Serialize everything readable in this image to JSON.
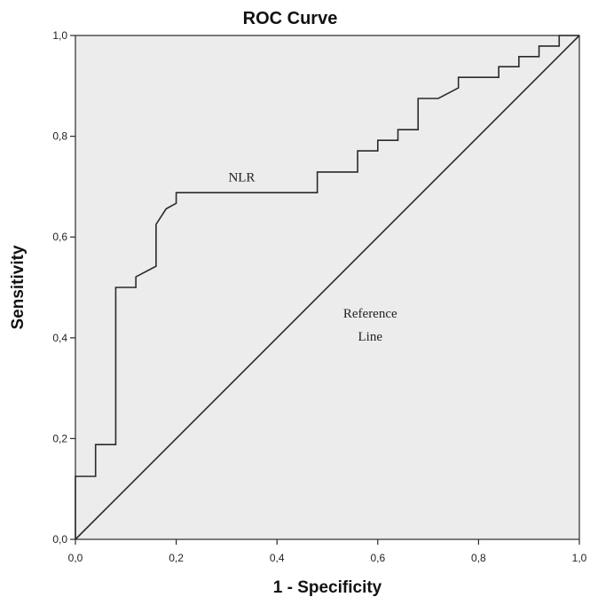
{
  "chart_data": {
    "type": "line",
    "title": "ROC Curve",
    "xlabel": "1 - Specificity",
    "ylabel": "Sensitivity",
    "xlim": [
      0,
      1
    ],
    "ylim": [
      0,
      1
    ],
    "xticks": [
      "0,0",
      "0,2",
      "0,4",
      "0,6",
      "0,8",
      "1,0"
    ],
    "yticks": [
      "0,0",
      "0,2",
      "0,4",
      "0,6",
      "0,8",
      "1,0"
    ],
    "grid": false,
    "plot_background": "#ececec",
    "series": [
      {
        "name": "NLR",
        "color": "#2a2a2a",
        "x": [
          0.0,
          0.0,
          0.04,
          0.04,
          0.08,
          0.08,
          0.12,
          0.12,
          0.16,
          0.16,
          0.18,
          0.2,
          0.2,
          0.48,
          0.48,
          0.56,
          0.56,
          0.6,
          0.6,
          0.64,
          0.64,
          0.68,
          0.68,
          0.72,
          0.76,
          0.76,
          0.84,
          0.84,
          0.88,
          0.88,
          0.92,
          0.92,
          0.96,
          0.96,
          1.0
        ],
        "y": [
          0.0,
          0.125,
          0.125,
          0.188,
          0.188,
          0.5,
          0.5,
          0.521,
          0.542,
          0.625,
          0.656,
          0.667,
          0.688,
          0.688,
          0.729,
          0.729,
          0.771,
          0.771,
          0.792,
          0.792,
          0.813,
          0.813,
          0.875,
          0.875,
          0.896,
          0.917,
          0.917,
          0.938,
          0.938,
          0.958,
          0.958,
          0.979,
          0.979,
          1.0,
          1.0
        ]
      },
      {
        "name": "Reference Line",
        "color": "#2a2a2a",
        "x": [
          0.0,
          1.0
        ],
        "y": [
          0.0,
          1.0
        ]
      }
    ],
    "annotations": [
      {
        "text": "NLR",
        "x": 0.33,
        "y": 0.71
      },
      {
        "text_lines": [
          "Reference",
          "Line"
        ],
        "x": 0.585,
        "y": 0.44
      }
    ]
  }
}
